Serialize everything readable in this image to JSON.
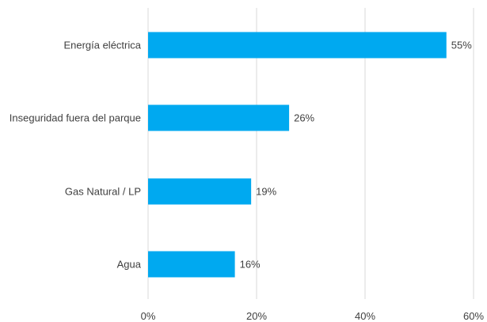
{
  "chart_data": {
    "type": "bar",
    "orientation": "horizontal",
    "categories": [
      "Energía eléctrica",
      "Inseguridad fuera del parque",
      "Gas Natural / LP",
      "Agua"
    ],
    "values": [
      55,
      26,
      19,
      16
    ],
    "data_labels": [
      "55%",
      "26%",
      "19%",
      "16%"
    ],
    "x_ticks": [
      0,
      20,
      40,
      60
    ],
    "x_tick_labels": [
      "0%",
      "20%",
      "40%",
      "60%"
    ],
    "xlim": [
      0,
      60
    ],
    "title": "",
    "xlabel": "",
    "ylabel": "",
    "grid": "vertical",
    "legend": "none",
    "colors": {
      "bar": "#00A9F0",
      "grid": "#D9D9D9",
      "text": "#404040"
    }
  }
}
